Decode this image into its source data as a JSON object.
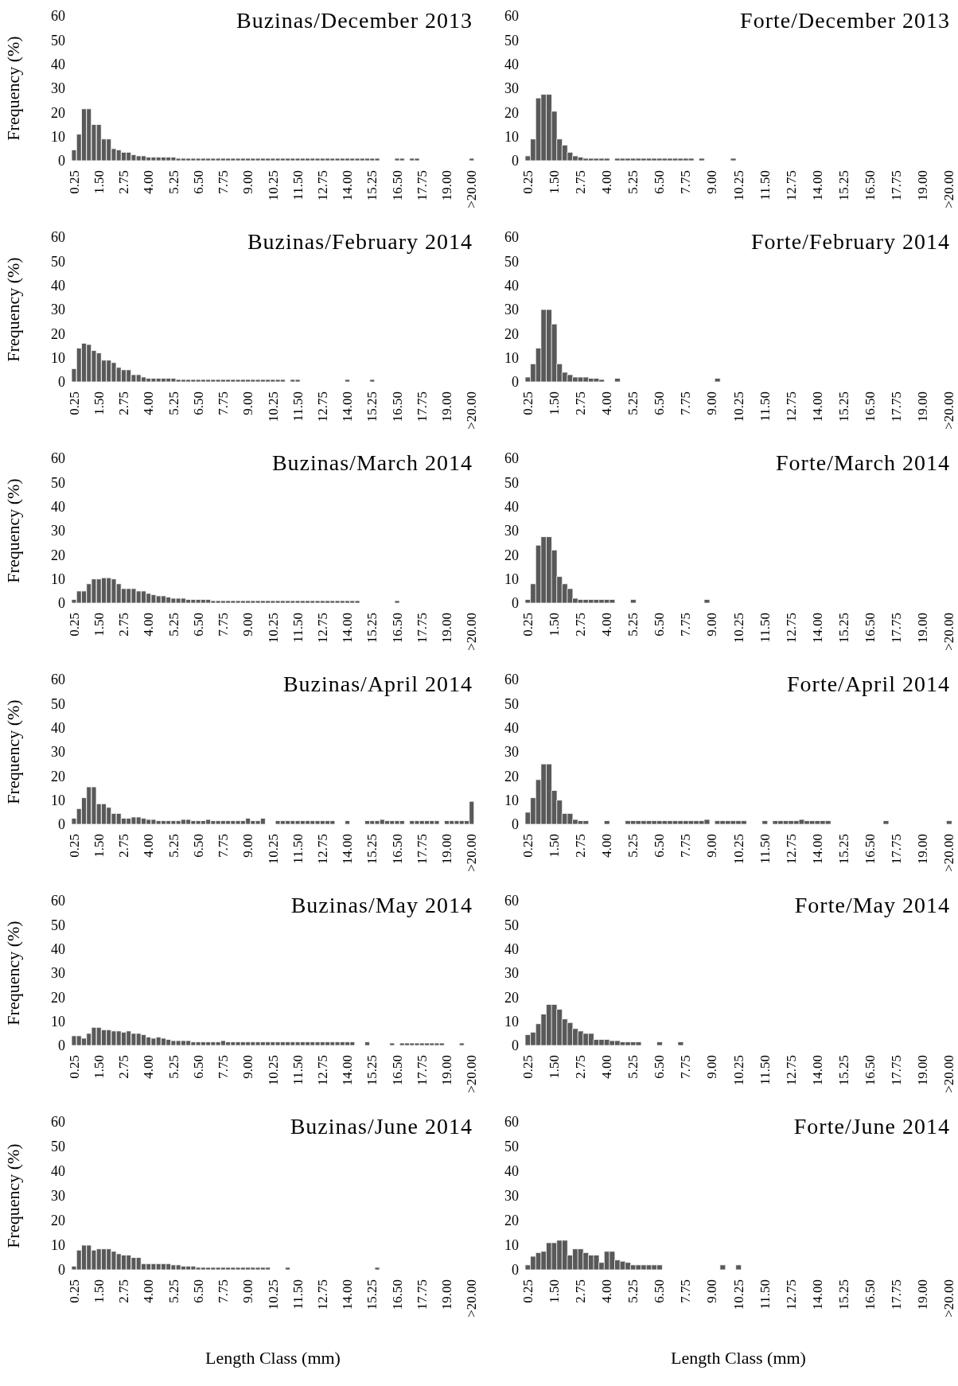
{
  "chart_data": [
    {
      "type": "bar",
      "title": "Buzinas/December 2013",
      "ylabel": "Frequency (%)",
      "color": "#595959",
      "ylim": [
        0,
        60
      ],
      "yticks": [
        0,
        10,
        20,
        30,
        40,
        50,
        60
      ],
      "categories": [
        "0.25",
        null,
        null,
        null,
        null,
        "1.50",
        null,
        null,
        null,
        null,
        "2.75",
        null,
        null,
        null,
        null,
        "4.00",
        null,
        null,
        null,
        null,
        "5.25",
        null,
        null,
        null,
        null,
        "6.50",
        null,
        null,
        null,
        null,
        "7.75",
        null,
        null,
        null,
        null,
        "9.00",
        null,
        null,
        null,
        null,
        "10.25",
        null,
        null,
        null,
        null,
        "11.50",
        null,
        null,
        null,
        null,
        "12.75",
        null,
        null,
        null,
        null,
        "14.00",
        null,
        null,
        null,
        null,
        "15.25",
        null,
        null,
        null,
        null,
        "16.50",
        null,
        null,
        null,
        null,
        "17.75",
        null,
        null,
        null,
        null,
        "19.00",
        null,
        null,
        null,
        null,
        ">20.00"
      ],
      "values": [
        4.5,
        11,
        21.5,
        21.5,
        15,
        15,
        9,
        9,
        5,
        4.5,
        3.5,
        3.5,
        2.5,
        2,
        2,
        1.5,
        1.5,
        1.5,
        1.5,
        1.5,
        1.5,
        1,
        1,
        1,
        1,
        1,
        1,
        1,
        1,
        1,
        1,
        1,
        1,
        1,
        1,
        1,
        1,
        1,
        1,
        1,
        1,
        1,
        1,
        1,
        1,
        1,
        1,
        1,
        1,
        1,
        1,
        1,
        1,
        1,
        1,
        1,
        1,
        1,
        1,
        1,
        1,
        1,
        null,
        null,
        null,
        1,
        1,
        null,
        1,
        1,
        null,
        null,
        null,
        null,
        null,
        null,
        null,
        null,
        null,
        null,
        1
      ]
    },
    {
      "type": "bar",
      "title": "Forte/December 2013",
      "color": "#595959",
      "ylim": [
        0,
        60
      ],
      "yticks": [
        0,
        10,
        20,
        30,
        40,
        50,
        60
      ],
      "categories": [
        "0.25",
        null,
        null,
        null,
        null,
        "1.50",
        null,
        null,
        null,
        null,
        "2.75",
        null,
        null,
        null,
        null,
        "4.00",
        null,
        null,
        null,
        null,
        "5.25",
        null,
        null,
        null,
        null,
        "6.50",
        null,
        null,
        null,
        null,
        "7.75",
        null,
        null,
        null,
        null,
        "9.00",
        null,
        null,
        null,
        null,
        "10.25",
        null,
        null,
        null,
        null,
        "11.50",
        null,
        null,
        null,
        null,
        "12.75",
        null,
        null,
        null,
        null,
        "14.00",
        null,
        null,
        null,
        null,
        "15.25",
        null,
        null,
        null,
        null,
        "16.50",
        null,
        null,
        null,
        null,
        "17.75",
        null,
        null,
        null,
        null,
        "19.00",
        null,
        null,
        null,
        null,
        ">20.00"
      ],
      "values": [
        2,
        9,
        26,
        27.5,
        27.5,
        20.5,
        9,
        6.5,
        3.5,
        2,
        1.5,
        1,
        1,
        1,
        1,
        1,
        null,
        1,
        1,
        1,
        1,
        1,
        1,
        1,
        1,
        1,
        1,
        1,
        1,
        1,
        1,
        1,
        null,
        1,
        null,
        null,
        null,
        null,
        null,
        1,
        null,
        null,
        null,
        null,
        null,
        null,
        null,
        null,
        null,
        null,
        null,
        null,
        null,
        null,
        null,
        null,
        null,
        null,
        null,
        null,
        null,
        null,
        null,
        null,
        null,
        null,
        null,
        null,
        null,
        null,
        null,
        null,
        null,
        null,
        null,
        null,
        null,
        null,
        null,
        null,
        null
      ]
    },
    {
      "type": "bar",
      "title": "Buzinas/February 2014",
      "ylabel": "Frequency (%)",
      "color": "#595959",
      "ylim": [
        0,
        60
      ],
      "yticks": [
        0,
        10,
        20,
        30,
        40,
        50,
        60
      ],
      "categories": [
        "0.25",
        null,
        null,
        null,
        null,
        "1.50",
        null,
        null,
        null,
        null,
        "2.75",
        null,
        null,
        null,
        null,
        "4.00",
        null,
        null,
        null,
        null,
        "5.25",
        null,
        null,
        null,
        null,
        "6.50",
        null,
        null,
        null,
        null,
        "7.75",
        null,
        null,
        null,
        null,
        "9.00",
        null,
        null,
        null,
        null,
        "10.25",
        null,
        null,
        null,
        null,
        "11.50",
        null,
        null,
        null,
        null,
        "12.75",
        null,
        null,
        null,
        null,
        "14.00",
        null,
        null,
        null,
        null,
        "15.25",
        null,
        null,
        null,
        null,
        "16.50",
        null,
        null,
        null,
        null,
        "17.75",
        null,
        null,
        null,
        null,
        "19.00",
        null,
        null,
        null,
        null,
        ">20.00"
      ],
      "values": [
        5.5,
        14,
        16,
        15.5,
        13,
        12,
        9,
        9,
        8,
        6,
        5,
        5,
        3,
        3,
        2,
        1.5,
        1.5,
        1.5,
        1.5,
        1.5,
        1.5,
        1,
        1,
        1,
        1,
        1,
        1,
        1,
        1,
        1,
        1,
        1,
        1,
        1,
        1,
        1,
        1,
        1,
        1,
        1,
        1,
        1,
        1,
        null,
        1,
        1,
        null,
        null,
        null,
        null,
        null,
        null,
        null,
        null,
        null,
        1,
        null,
        null,
        null,
        null,
        1,
        null,
        null,
        null,
        null,
        null,
        null,
        null,
        null,
        null,
        null,
        null,
        null,
        null,
        null,
        null,
        null,
        null,
        null,
        null,
        null
      ]
    },
    {
      "type": "bar",
      "title": "Forte/February 2014",
      "color": "#595959",
      "ylim": [
        0,
        60
      ],
      "yticks": [
        0,
        10,
        20,
        30,
        40,
        50,
        60
      ],
      "categories": [
        "0.25",
        null,
        null,
        null,
        null,
        "1.50",
        null,
        null,
        null,
        null,
        "2.75",
        null,
        null,
        null,
        null,
        "4.00",
        null,
        null,
        null,
        null,
        "5.25",
        null,
        null,
        null,
        null,
        "6.50",
        null,
        null,
        null,
        null,
        "7.75",
        null,
        null,
        null,
        null,
        "9.00",
        null,
        null,
        null,
        null,
        "10.25",
        null,
        null,
        null,
        null,
        "11.50",
        null,
        null,
        null,
        null,
        "12.75",
        null,
        null,
        null,
        null,
        "14.00",
        null,
        null,
        null,
        null,
        "15.25",
        null,
        null,
        null,
        null,
        "16.50",
        null,
        null,
        null,
        null,
        "17.75",
        null,
        null,
        null,
        null,
        "19.00",
        null,
        null,
        null,
        null,
        ">20.00"
      ],
      "values": [
        2,
        7.5,
        14,
        30,
        30,
        24,
        7.5,
        4,
        3,
        2,
        2,
        2,
        1.5,
        1.5,
        1,
        null,
        null,
        1.5,
        null,
        null,
        null,
        null,
        null,
        null,
        null,
        null,
        null,
        null,
        null,
        null,
        null,
        null,
        null,
        null,
        null,
        null,
        1.5,
        null,
        null,
        null,
        null,
        null,
        null,
        null,
        null,
        null,
        null,
        null,
        null,
        null,
        null,
        null,
        null,
        null,
        null,
        null,
        null,
        null,
        null,
        null,
        null,
        null,
        null,
        null,
        null,
        null,
        null,
        null,
        null,
        null,
        null,
        null,
        null,
        null,
        null,
        null,
        null,
        null,
        null,
        null,
        null
      ]
    },
    {
      "type": "bar",
      "title": "Buzinas/March 2014",
      "ylabel": "Frequency (%)",
      "color": "#595959",
      "ylim": [
        0,
        60
      ],
      "yticks": [
        0,
        10,
        20,
        30,
        40,
        50,
        60
      ],
      "categories": [
        "0.25",
        null,
        null,
        null,
        null,
        "1.50",
        null,
        null,
        null,
        null,
        "2.75",
        null,
        null,
        null,
        null,
        "4.00",
        null,
        null,
        null,
        null,
        "5.25",
        null,
        null,
        null,
        null,
        "6.50",
        null,
        null,
        null,
        null,
        "7.75",
        null,
        null,
        null,
        null,
        "9.00",
        null,
        null,
        null,
        null,
        "10.25",
        null,
        null,
        null,
        null,
        "11.50",
        null,
        null,
        null,
        null,
        "12.75",
        null,
        null,
        null,
        null,
        "14.00",
        null,
        null,
        null,
        null,
        "15.25",
        null,
        null,
        null,
        null,
        "16.50",
        null,
        null,
        null,
        null,
        "17.75",
        null,
        null,
        null,
        null,
        "19.00",
        null,
        null,
        null,
        null,
        ">20.00"
      ],
      "values": [
        1.5,
        5,
        5,
        8,
        10,
        10,
        10.5,
        10.5,
        10,
        8,
        6,
        6,
        6,
        5,
        5,
        4,
        3.5,
        3,
        3,
        2.5,
        2,
        2,
        2,
        1.5,
        1.5,
        1.5,
        1.5,
        1.5,
        1,
        1,
        1,
        1,
        1,
        1,
        1,
        1,
        1,
        1,
        1,
        1,
        1,
        1,
        1,
        1,
        1,
        1,
        1,
        1,
        1,
        1,
        1,
        1,
        1,
        1,
        1,
        1,
        1,
        1,
        null,
        null,
        null,
        null,
        null,
        null,
        null,
        1,
        null,
        null,
        null,
        null,
        null,
        null,
        null,
        null,
        null,
        null,
        null,
        null,
        null,
        null,
        null
      ]
    },
    {
      "type": "bar",
      "title": "Forte/March 2014",
      "color": "#595959",
      "ylim": [
        0,
        60
      ],
      "yticks": [
        0,
        10,
        20,
        30,
        40,
        50,
        60
      ],
      "categories": [
        "0.25",
        null,
        null,
        null,
        null,
        "1.50",
        null,
        null,
        null,
        null,
        "2.75",
        null,
        null,
        null,
        null,
        "4.00",
        null,
        null,
        null,
        null,
        "5.25",
        null,
        null,
        null,
        null,
        "6.50",
        null,
        null,
        null,
        null,
        "7.75",
        null,
        null,
        null,
        null,
        "9.00",
        null,
        null,
        null,
        null,
        "10.25",
        null,
        null,
        null,
        null,
        "11.50",
        null,
        null,
        null,
        null,
        "12.75",
        null,
        null,
        null,
        null,
        "14.00",
        null,
        null,
        null,
        null,
        "15.25",
        null,
        null,
        null,
        null,
        "16.50",
        null,
        null,
        null,
        null,
        "17.75",
        null,
        null,
        null,
        null,
        "19.00",
        null,
        null,
        null,
        null,
        ">20.00"
      ],
      "values": [
        1.5,
        8,
        24,
        27.5,
        27.5,
        22,
        11,
        8,
        6,
        2,
        1.5,
        1.5,
        1.5,
        1.5,
        1.5,
        1.5,
        1.5,
        null,
        null,
        null,
        1.5,
        null,
        null,
        null,
        null,
        null,
        null,
        null,
        null,
        null,
        null,
        null,
        null,
        null,
        1.5,
        null,
        null,
        null,
        null,
        null,
        null,
        null,
        null,
        null,
        null,
        null,
        null,
        null,
        null,
        null,
        null,
        null,
        null,
        null,
        null,
        null,
        null,
        null,
        null,
        null,
        null,
        null,
        null,
        null,
        null,
        null,
        null,
        null,
        null,
        null,
        null,
        null,
        null,
        null,
        null,
        null,
        null,
        null,
        null,
        null,
        null
      ]
    },
    {
      "type": "bar",
      "title": "Buzinas/April 2014",
      "ylabel": "Frequency (%)",
      "color": "#595959",
      "ylim": [
        0,
        60
      ],
      "yticks": [
        0,
        10,
        20,
        30,
        40,
        50,
        60
      ],
      "categories": [
        "0.25",
        null,
        null,
        null,
        null,
        "1.50",
        null,
        null,
        null,
        null,
        "2.75",
        null,
        null,
        null,
        null,
        "4.00",
        null,
        null,
        null,
        null,
        "5.25",
        null,
        null,
        null,
        null,
        "6.50",
        null,
        null,
        null,
        null,
        "7.75",
        null,
        null,
        null,
        null,
        "9.00",
        null,
        null,
        null,
        null,
        "10.25",
        null,
        null,
        null,
        null,
        "11.50",
        null,
        null,
        null,
        null,
        "12.75",
        null,
        null,
        null,
        null,
        "14.00",
        null,
        null,
        null,
        null,
        "15.25",
        null,
        null,
        null,
        null,
        "16.50",
        null,
        null,
        null,
        null,
        "17.75",
        null,
        null,
        null,
        null,
        "19.00",
        null,
        null,
        null,
        null,
        ">20.00"
      ],
      "values": [
        2.5,
        6.5,
        11,
        15.5,
        15.5,
        8.5,
        8.5,
        7,
        4.5,
        4.5,
        2.5,
        2.5,
        3,
        3,
        2.5,
        2,
        2,
        1.5,
        1.5,
        1.5,
        1.5,
        1.5,
        2,
        2,
        1.5,
        1.5,
        1.5,
        2,
        1.5,
        1.5,
        1.5,
        1.5,
        1.5,
        1.5,
        1.5,
        2.5,
        1.5,
        1.5,
        2.5,
        null,
        null,
        1.5,
        1.5,
        1.5,
        1.5,
        1.5,
        1.5,
        1.5,
        1.5,
        1.5,
        1.5,
        1.5,
        1.5,
        null,
        null,
        1.5,
        null,
        null,
        null,
        1.5,
        1.5,
        1.5,
        2,
        1.5,
        1.5,
        1.5,
        1.5,
        null,
        1.5,
        1.5,
        1.5,
        1.5,
        1.5,
        1.5,
        null,
        1.5,
        1.5,
        1.5,
        1.5,
        1.5,
        9.5
      ]
    },
    {
      "type": "bar",
      "title": "Forte/April 2014",
      "color": "#595959",
      "ylim": [
        0,
        60
      ],
      "yticks": [
        0,
        10,
        20,
        30,
        40,
        50,
        60
      ],
      "categories": [
        "0.25",
        null,
        null,
        null,
        null,
        "1.50",
        null,
        null,
        null,
        null,
        "2.75",
        null,
        null,
        null,
        null,
        "4.00",
        null,
        null,
        null,
        null,
        "5.25",
        null,
        null,
        null,
        null,
        "6.50",
        null,
        null,
        null,
        null,
        "7.75",
        null,
        null,
        null,
        null,
        "9.00",
        null,
        null,
        null,
        null,
        "10.25",
        null,
        null,
        null,
        null,
        "11.50",
        null,
        null,
        null,
        null,
        "12.75",
        null,
        null,
        null,
        null,
        "14.00",
        null,
        null,
        null,
        null,
        "15.25",
        null,
        null,
        null,
        null,
        "16.50",
        null,
        null,
        null,
        null,
        "17.75",
        null,
        null,
        null,
        null,
        "19.00",
        null,
        null,
        null,
        null,
        ">20.00"
      ],
      "values": [
        5,
        11,
        18.5,
        25,
        25,
        14,
        10,
        4.5,
        4.5,
        2,
        1.5,
        1.5,
        null,
        null,
        null,
        1.5,
        null,
        null,
        null,
        1.5,
        1.5,
        1.5,
        1.5,
        1.5,
        1.5,
        1.5,
        1.5,
        1.5,
        1.5,
        1.5,
        1.5,
        1.5,
        1.5,
        1.5,
        2,
        null,
        1.5,
        1.5,
        1.5,
        1.5,
        1.5,
        1.5,
        null,
        null,
        null,
        1.5,
        null,
        1.5,
        1.5,
        1.5,
        1.5,
        1.5,
        2,
        1.5,
        1.5,
        1.5,
        1.5,
        1.5,
        null,
        null,
        null,
        null,
        null,
        null,
        null,
        null,
        null,
        null,
        1.5,
        null,
        null,
        null,
        null,
        null,
        null,
        null,
        null,
        null,
        null,
        null,
        1.5
      ]
    },
    {
      "type": "bar",
      "title": "Buzinas/May 2014",
      "ylabel": "Frequency (%)",
      "color": "#595959",
      "ylim": [
        0,
        60
      ],
      "yticks": [
        0,
        10,
        20,
        30,
        40,
        50,
        60
      ],
      "categories": [
        "0.25",
        null,
        null,
        null,
        null,
        "1.50",
        null,
        null,
        null,
        null,
        "2.75",
        null,
        null,
        null,
        null,
        "4.00",
        null,
        null,
        null,
        null,
        "5.25",
        null,
        null,
        null,
        null,
        "6.50",
        null,
        null,
        null,
        null,
        "7.75",
        null,
        null,
        null,
        null,
        "9.00",
        null,
        null,
        null,
        null,
        "10.25",
        null,
        null,
        null,
        null,
        "11.50",
        null,
        null,
        null,
        null,
        "12.75",
        null,
        null,
        null,
        null,
        "14.00",
        null,
        null,
        null,
        null,
        "15.25",
        null,
        null,
        null,
        null,
        "16.50",
        null,
        null,
        null,
        null,
        "17.75",
        null,
        null,
        null,
        null,
        "19.00",
        null,
        null,
        null,
        null,
        ">20.00"
      ],
      "values": [
        4,
        4,
        3,
        5,
        7.5,
        7.5,
        6.5,
        6.5,
        6,
        6,
        5.5,
        6,
        5,
        5,
        4.5,
        3.5,
        3,
        3.5,
        3,
        2.5,
        2,
        2,
        2,
        2,
        1.5,
        1.5,
        1.5,
        1.5,
        1.5,
        1.5,
        2,
        1.5,
        1.5,
        1.5,
        1.5,
        1.5,
        1.5,
        1.5,
        1.5,
        1.5,
        1.5,
        1.5,
        1.5,
        1.5,
        1.5,
        1.5,
        1.5,
        1.5,
        1.5,
        1.5,
        1.5,
        1.5,
        1.5,
        1.5,
        1.5,
        1.5,
        1.5,
        null,
        null,
        1.5,
        null,
        null,
        null,
        null,
        1,
        null,
        1,
        1,
        1,
        1,
        1,
        1,
        1,
        1,
        1,
        null,
        null,
        null,
        1,
        null,
        null
      ]
    },
    {
      "type": "bar",
      "title": "Forte/May 2014",
      "color": "#595959",
      "ylim": [
        0,
        60
      ],
      "yticks": [
        0,
        10,
        20,
        30,
        40,
        50,
        60
      ],
      "categories": [
        "0.25",
        null,
        null,
        null,
        null,
        "1.50",
        null,
        null,
        null,
        null,
        "2.75",
        null,
        null,
        null,
        null,
        "4.00",
        null,
        null,
        null,
        null,
        "5.25",
        null,
        null,
        null,
        null,
        "6.50",
        null,
        null,
        null,
        null,
        "7.75",
        null,
        null,
        null,
        null,
        "9.00",
        null,
        null,
        null,
        null,
        "10.25",
        null,
        null,
        null,
        null,
        "11.50",
        null,
        null,
        null,
        null,
        "12.75",
        null,
        null,
        null,
        null,
        "14.00",
        null,
        null,
        null,
        null,
        "15.25",
        null,
        null,
        null,
        null,
        "16.50",
        null,
        null,
        null,
        null,
        "17.75",
        null,
        null,
        null,
        null,
        "19.00",
        null,
        null,
        null,
        null,
        ">20.00"
      ],
      "values": [
        4.5,
        5.5,
        9,
        13,
        17,
        17,
        15,
        11,
        9.5,
        7,
        6,
        5,
        5,
        2.5,
        2.5,
        2.5,
        2,
        2,
        1.5,
        1.5,
        1.5,
        1.5,
        null,
        null,
        null,
        1.5,
        null,
        null,
        null,
        1.5,
        null,
        null,
        null,
        null,
        null,
        null,
        null,
        null,
        null,
        null,
        null,
        null,
        null,
        null,
        null,
        null,
        null,
        null,
        null,
        null,
        null,
        null,
        null,
        null,
        null,
        null,
        null,
        null,
        null,
        null,
        null,
        null,
        null,
        null,
        null,
        null,
        null,
        null,
        null,
        null,
        null,
        null,
        null,
        null,
        null,
        null,
        null,
        null,
        null,
        null,
        null
      ]
    },
    {
      "type": "bar",
      "title": "Buzinas/June 2014",
      "ylabel": "Frequency (%)",
      "xlabel": "Length Class (mm)",
      "color": "#595959",
      "ylim": [
        0,
        60
      ],
      "yticks": [
        0,
        10,
        20,
        30,
        40,
        50,
        60
      ],
      "categories": [
        "0.25",
        null,
        null,
        null,
        null,
        "1.50",
        null,
        null,
        null,
        null,
        "2.75",
        null,
        null,
        null,
        null,
        "4.00",
        null,
        null,
        null,
        null,
        "5.25",
        null,
        null,
        null,
        null,
        "6.50",
        null,
        null,
        null,
        null,
        "7.75",
        null,
        null,
        null,
        null,
        "9.00",
        null,
        null,
        null,
        null,
        "10.25",
        null,
        null,
        null,
        null,
        "11.50",
        null,
        null,
        null,
        null,
        "12.75",
        null,
        null,
        null,
        null,
        "14.00",
        null,
        null,
        null,
        null,
        "15.25",
        null,
        null,
        null,
        null,
        "16.50",
        null,
        null,
        null,
        null,
        "17.75",
        null,
        null,
        null,
        null,
        "19.00",
        null,
        null,
        null,
        null,
        ">20.00"
      ],
      "values": [
        1.5,
        8,
        10,
        10,
        8,
        8.5,
        8.5,
        8.5,
        7.5,
        6.5,
        6,
        6,
        5,
        5,
        2.5,
        2.5,
        2.5,
        2.5,
        2.5,
        2.5,
        2,
        2,
        1.5,
        1.5,
        1.5,
        1,
        1,
        1,
        1,
        1,
        1,
        1,
        1,
        1,
        1,
        1,
        1,
        1,
        1,
        1,
        null,
        null,
        null,
        1,
        null,
        null,
        null,
        null,
        null,
        null,
        null,
        null,
        null,
        null,
        null,
        null,
        null,
        null,
        null,
        null,
        null,
        1,
        null,
        null,
        null,
        null,
        null,
        null,
        null,
        null,
        null,
        null,
        null,
        null,
        null,
        null,
        null,
        null,
        null,
        null,
        null
      ]
    },
    {
      "type": "bar",
      "title": "Forte/June 2014",
      "xlabel": "Length Class (mm)",
      "color": "#595959",
      "ylim": [
        0,
        60
      ],
      "yticks": [
        0,
        10,
        20,
        30,
        40,
        50,
        60
      ],
      "categories": [
        "0.25",
        null,
        null,
        null,
        null,
        "1.50",
        null,
        null,
        null,
        null,
        "2.75",
        null,
        null,
        null,
        null,
        "4.00",
        null,
        null,
        null,
        null,
        "5.25",
        null,
        null,
        null,
        null,
        "6.50",
        null,
        null,
        null,
        null,
        "7.75",
        null,
        null,
        null,
        null,
        "9.00",
        null,
        null,
        null,
        null,
        "10.25",
        null,
        null,
        null,
        null,
        "11.50",
        null,
        null,
        null,
        null,
        "12.75",
        null,
        null,
        null,
        null,
        "14.00",
        null,
        null,
        null,
        null,
        "15.25",
        null,
        null,
        null,
        null,
        "16.50",
        null,
        null,
        null,
        null,
        "17.75",
        null,
        null,
        null,
        null,
        "19.00",
        null,
        null,
        null,
        null,
        ">20.00"
      ],
      "values": [
        2,
        5.5,
        7,
        7.5,
        11,
        11,
        12,
        12,
        6,
        8.5,
        8.5,
        7,
        6,
        6,
        3,
        7.5,
        7.5,
        4,
        3.5,
        3,
        2,
        2,
        2,
        2,
        2,
        2,
        null,
        null,
        null,
        null,
        null,
        null,
        null,
        null,
        null,
        null,
        null,
        2,
        null,
        null,
        2,
        null,
        null,
        null,
        null,
        null,
        null,
        null,
        null,
        null,
        null,
        null,
        null,
        null,
        null,
        null,
        null,
        null,
        null,
        null,
        null,
        null,
        null,
        null,
        null,
        null,
        null,
        null,
        null,
        null,
        null,
        null,
        null,
        null,
        null,
        null,
        null,
        null,
        null,
        null,
        null
      ]
    }
  ]
}
